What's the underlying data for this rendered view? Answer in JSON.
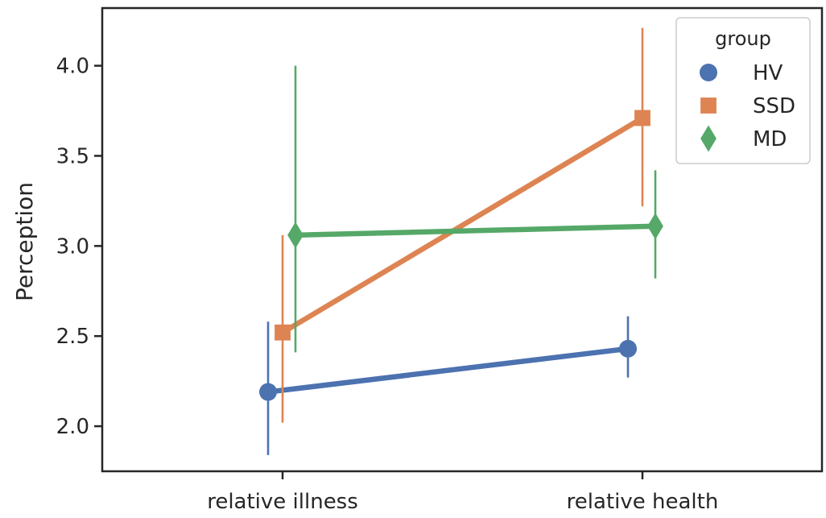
{
  "chart_data": {
    "type": "line",
    "subtype": "point-plot with error bars",
    "categories": [
      "relative illness",
      "relative health"
    ],
    "xlabel": "",
    "ylabel": "Perception",
    "ylim": [
      1.75,
      4.32
    ],
    "yticks": [
      "2.0",
      "2.5",
      "3.0",
      "3.5",
      "4.0"
    ],
    "grid": false,
    "legend": {
      "title": "group",
      "placement": "top-right"
    },
    "series": [
      {
        "name": "HV",
        "color": "#4c72b0",
        "marker": "circle",
        "values": [
          2.19,
          2.43
        ],
        "ci": [
          [
            1.84,
            2.58
          ],
          [
            2.27,
            2.61
          ]
        ]
      },
      {
        "name": "SSD",
        "color": "#dd8452",
        "marker": "square",
        "values": [
          2.52,
          3.71
        ],
        "ci": [
          [
            2.02,
            3.06
          ],
          [
            3.22,
            4.21
          ]
        ]
      },
      {
        "name": "MD",
        "color": "#55a868",
        "marker": "diamond",
        "values": [
          3.06,
          3.11
        ],
        "ci": [
          [
            2.41,
            4.0
          ],
          [
            2.82,
            3.42
          ]
        ]
      }
    ]
  }
}
